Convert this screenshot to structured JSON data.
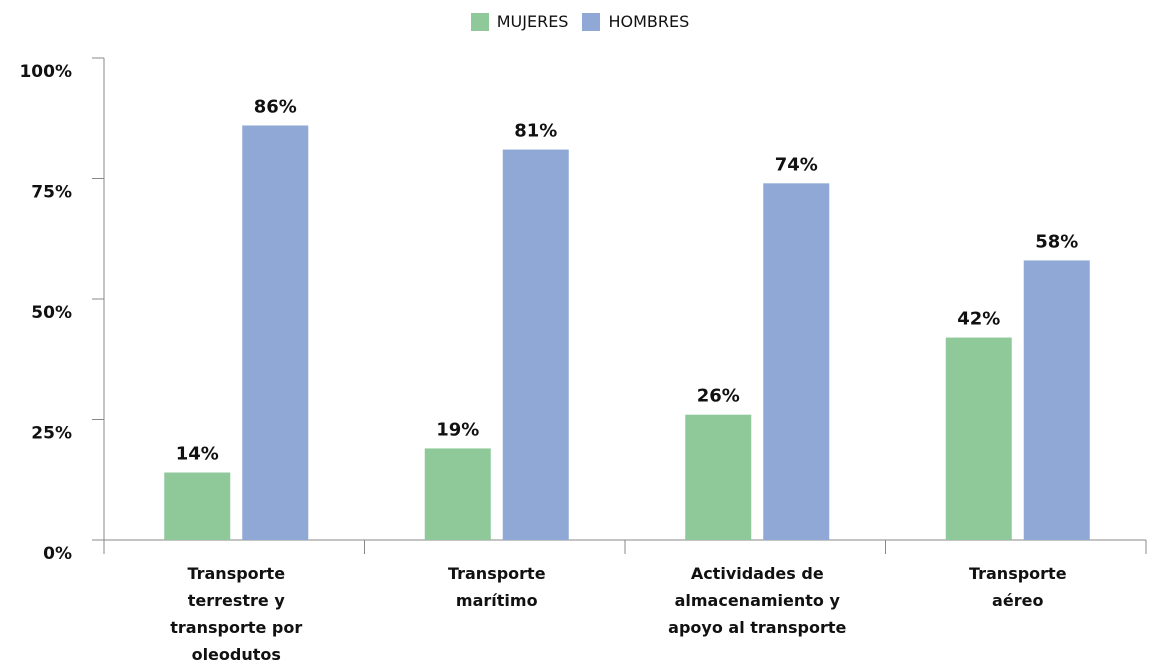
{
  "chart_data": {
    "type": "bar",
    "categories": [
      "Transporte terrestre y transporte por oleodutos",
      "Transporte marítimo",
      "Actividades de almacenamiento y apoyo al transporte",
      "Transporte aéreo"
    ],
    "category_lines": [
      [
        "Transporte",
        "terrestre y",
        "transporte por",
        "oleodutos"
      ],
      [
        "Transporte",
        "marítimo"
      ],
      [
        "Actividades de",
        "almacenamiento y",
        "apoyo al transporte"
      ],
      [
        "Transporte",
        "aéreo"
      ]
    ],
    "series": [
      {
        "name": "MUJERES",
        "values": [
          14,
          19,
          26,
          42
        ],
        "labels": [
          "14%",
          "19%",
          "26%",
          "42%"
        ],
        "color": "#8fc99a"
      },
      {
        "name": "HOMBRES",
        "values": [
          86,
          81,
          74,
          58
        ],
        "labels": [
          "86%",
          "81%",
          "74%",
          "58%"
        ],
        "color": "#8fa8d6"
      }
    ],
    "y_ticks": [
      0,
      25,
      50,
      75,
      100
    ],
    "y_tick_labels": [
      "0%",
      "25%",
      "50%",
      "75%",
      "100%"
    ],
    "ylim": [
      0,
      100
    ],
    "legend_position": "top-center",
    "grid": false
  }
}
